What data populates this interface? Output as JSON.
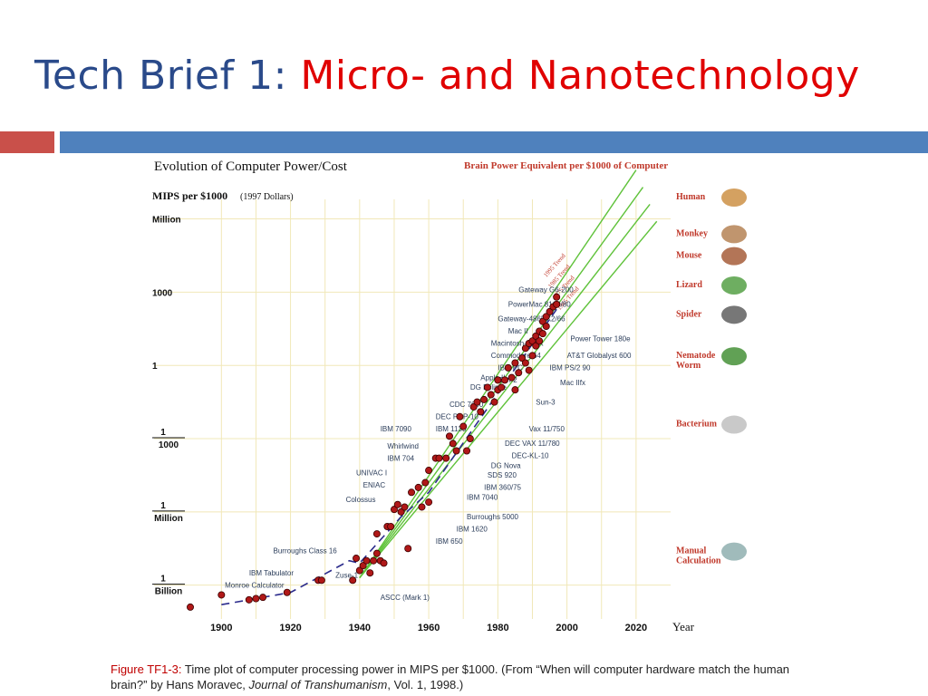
{
  "slide": {
    "title_prefix": "Tech Brief 1: ",
    "title_suffix": "Micro- and Nanotechnology",
    "caption_fig": "Figure TF1-3:",
    "caption_p1": " Time plot of computer processing power in MIPS per $1000. (From “When will computer hardware match the human brain?” by Hans Moravec, ",
    "caption_journal": "Journal of Transhumanism",
    "caption_p2": ", Vol. 1, 1998.)"
  },
  "colors": {
    "title_blue": "#2a4a8a",
    "title_red": "#e00000",
    "bar_red": "#c9504a",
    "bar_blue": "#4f81bd",
    "points": "#b01818",
    "trend": "#5fc23a",
    "dashed": "#2c2c8c",
    "creature_label": "#c0392b"
  },
  "chart_data": {
    "type": "scatter",
    "title": "Evolution of Computer Power/Cost",
    "ylabel": "MIPS per $1000",
    "ylabel_note": "(1997 Dollars)",
    "right_title": "Brain Power Equivalent per $1000 of Computer",
    "xlabel": "Year",
    "x_ticks": [
      "1900",
      "1920",
      "1940",
      "1960",
      "1980",
      "2000",
      "2020"
    ],
    "y_scale": "log",
    "y_ticks": [
      {
        "log": 6,
        "top": "Million",
        "bottom": ""
      },
      {
        "log": 3,
        "top": "1000",
        "bottom": ""
      },
      {
        "log": 0,
        "top": "1",
        "bottom": ""
      },
      {
        "log": -3,
        "top": "1",
        "bottom": "1000"
      },
      {
        "log": -6,
        "top": "1",
        "bottom": "Million"
      },
      {
        "log": -9,
        "top": "1",
        "bottom": "Billion"
      }
    ],
    "xlim": [
      1891,
      2030
    ],
    "ylim_log10": [
      -10.2,
      6.8
    ],
    "points": [
      [
        1891,
        -9.9
      ],
      [
        1900,
        -9.4
      ],
      [
        1908,
        -9.6
      ],
      [
        1910,
        -9.55
      ],
      [
        1912,
        -9.5
      ],
      [
        1919,
        -9.3
      ],
      [
        1928,
        -8.8
      ],
      [
        1929,
        -8.8
      ],
      [
        1938,
        -8.8
      ],
      [
        1939,
        -7.9
      ],
      [
        1940,
        -8.4
      ],
      [
        1941,
        -8.2
      ],
      [
        1942,
        -8.0
      ],
      [
        1943,
        -8.5
      ],
      [
        1944,
        -8.0
      ],
      [
        1945,
        -7.7
      ],
      [
        1946,
        -8.0
      ],
      [
        1947,
        -8.1
      ],
      [
        1945,
        -6.9
      ],
      [
        1948,
        -6.6
      ],
      [
        1949,
        -6.6
      ],
      [
        1950,
        -5.9
      ],
      [
        1951,
        -5.7
      ],
      [
        1952,
        -6.0
      ],
      [
        1953,
        -5.8
      ],
      [
        1954,
        -7.5
      ],
      [
        1955,
        -5.2
      ],
      [
        1957,
        -5.0
      ],
      [
        1958,
        -5.8
      ],
      [
        1959,
        -4.8
      ],
      [
        1960,
        -5.6
      ],
      [
        1960,
        -4.3
      ],
      [
        1962,
        -3.8
      ],
      [
        1963,
        -3.8
      ],
      [
        1965,
        -3.8
      ],
      [
        1966,
        -2.9
      ],
      [
        1967,
        -3.2
      ],
      [
        1968,
        -3.5
      ],
      [
        1969,
        -2.1
      ],
      [
        1970,
        -2.5
      ],
      [
        1971,
        -3.5
      ],
      [
        1972,
        -3.0
      ],
      [
        1973,
        -1.7
      ],
      [
        1974,
        -1.5
      ],
      [
        1975,
        -1.9
      ],
      [
        1976,
        -1.4
      ],
      [
        1977,
        -0.9
      ],
      [
        1978,
        -1.2
      ],
      [
        1979,
        -1.5
      ],
      [
        1980,
        -0.6
      ],
      [
        1980,
        -1.0
      ],
      [
        1981,
        -0.9
      ],
      [
        1982,
        -0.6
      ],
      [
        1983,
        -0.1
      ],
      [
        1984,
        -0.5
      ],
      [
        1985,
        -1.0
      ],
      [
        1985,
        0.1
      ],
      [
        1986,
        -0.3
      ],
      [
        1987,
        0.3
      ],
      [
        1988,
        0.1
      ],
      [
        1988,
        0.7
      ],
      [
        1989,
        -0.2
      ],
      [
        1989,
        0.9
      ],
      [
        1990,
        0.4
      ],
      [
        1990,
        1.0
      ],
      [
        1991,
        0.8
      ],
      [
        1991,
        1.2
      ],
      [
        1992,
        1.4
      ],
      [
        1992,
        1.0
      ],
      [
        1993,
        1.8
      ],
      [
        1993,
        1.3
      ],
      [
        1994,
        1.6
      ],
      [
        1994,
        2.0
      ],
      [
        1995,
        2.2
      ],
      [
        1996,
        2.4
      ],
      [
        1997,
        2.5
      ],
      [
        1997,
        2.8
      ]
    ],
    "dashed_trend": [
      [
        1900,
        -9.8
      ],
      [
        1920,
        -9.3
      ],
      [
        1937,
        -8.0
      ],
      [
        1940,
        -8.1
      ],
      [
        1952,
        -6.2
      ],
      [
        1960,
        -5.2
      ],
      [
        1997,
        2.3
      ]
    ],
    "point_labels": [
      {
        "text": "Gateway G6-200",
        "x": 1986,
        "y": 3.0
      },
      {
        "text": "PowerMac 8100/80",
        "x": 1983,
        "y": 2.4
      },
      {
        "text": "Gateway-486DX2/66",
        "x": 1980,
        "y": 1.8
      },
      {
        "text": "Mac II",
        "x": 1983,
        "y": 1.3
      },
      {
        "text": "Macintosh-128K",
        "x": 1978,
        "y": 0.8
      },
      {
        "text": "Commodore 64",
        "x": 1978,
        "y": 0.3
      },
      {
        "text": "IBM PC",
        "x": 1980,
        "y": -0.2
      },
      {
        "text": "Apple II",
        "x": 1975,
        "y": -0.6
      },
      {
        "text": "Sun-2",
        "x": 1980,
        "y": -0.7
      },
      {
        "text": "DG Eclipse",
        "x": 1972,
        "y": -1.0
      },
      {
        "text": "CDC 7600",
        "x": 1966,
        "y": -1.7
      },
      {
        "text": "DEC PDP-10",
        "x": 1962,
        "y": -2.2
      },
      {
        "text": "IBM 7090",
        "x": 1946,
        "y": -2.7
      },
      {
        "text": "IBM 1130",
        "x": 1962,
        "y": -2.7
      },
      {
        "text": "Whirlwind",
        "x": 1948,
        "y": -3.4
      },
      {
        "text": "IBM 704",
        "x": 1948,
        "y": -3.9
      },
      {
        "text": "UNIVAC I",
        "x": 1939,
        "y": -4.5
      },
      {
        "text": "ENIAC",
        "x": 1941,
        "y": -5.0
      },
      {
        "text": "Colossus",
        "x": 1936,
        "y": -5.6
      },
      {
        "text": "Burroughs Class 16",
        "x": 1915,
        "y": -7.7
      },
      {
        "text": "IBM Tabulator",
        "x": 1908,
        "y": -8.6
      },
      {
        "text": "Monroe Calculator",
        "x": 1901,
        "y": -9.1
      },
      {
        "text": "Zuse-1",
        "x": 1933,
        "y": -8.7
      },
      {
        "text": "ASCC (Mark 1)",
        "x": 1946,
        "y": -9.6
      },
      {
        "text": "Power Tower 180e",
        "x": 2001,
        "y": 1.0
      },
      {
        "text": "AT&T Globalyst 600",
        "x": 2000,
        "y": 0.3
      },
      {
        "text": "IBM PS/2 90",
        "x": 1995,
        "y": -0.2
      },
      {
        "text": "Mac IIfx",
        "x": 1998,
        "y": -0.8
      },
      {
        "text": "Sun-3",
        "x": 1991,
        "y": -1.6
      },
      {
        "text": "Vax 11/750",
        "x": 1989,
        "y": -2.7
      },
      {
        "text": "DEC VAX 11/780",
        "x": 1982,
        "y": -3.3
      },
      {
        "text": "DEC-KL-10",
        "x": 1984,
        "y": -3.8
      },
      {
        "text": "DG Nova",
        "x": 1978,
        "y": -4.2
      },
      {
        "text": "SDS 920",
        "x": 1977,
        "y": -4.6
      },
      {
        "text": "IBM 360/75",
        "x": 1976,
        "y": -5.1
      },
      {
        "text": "IBM 7040",
        "x": 1971,
        "y": -5.5
      },
      {
        "text": "Burroughs 5000",
        "x": 1971,
        "y": -6.3
      },
      {
        "text": "IBM 1620",
        "x": 1968,
        "y": -6.8
      },
      {
        "text": "IBM 650",
        "x": 1962,
        "y": -7.3
      }
    ],
    "trend_lines": [
      {
        "name": "1995 Trend",
        "to": [
          2020,
          8.0
        ]
      },
      {
        "name": "1985 Trend",
        "to": [
          2022,
          7.3
        ]
      },
      {
        "name": "1975 Trend",
        "to": [
          2024,
          6.6
        ]
      },
      {
        "name": "1965 Trend",
        "to": [
          2026,
          5.9
        ]
      }
    ],
    "trend_origin": [
      1940,
      -8.7
    ],
    "creatures": [
      {
        "label": "Human",
        "y": 6.8
      },
      {
        "label": "Monkey",
        "y": 5.3
      },
      {
        "label": "Mouse",
        "y": 4.4
      },
      {
        "label": "Lizard",
        "y": 3.2
      },
      {
        "label": "Spider",
        "y": 2.0
      },
      {
        "label": "Nematode\nWorm",
        "y": 0.3
      },
      {
        "label": "Bacterium",
        "y": -2.5
      },
      {
        "label": "Manual\nCalculation",
        "y": -7.7
      }
    ],
    "grid": true
  }
}
